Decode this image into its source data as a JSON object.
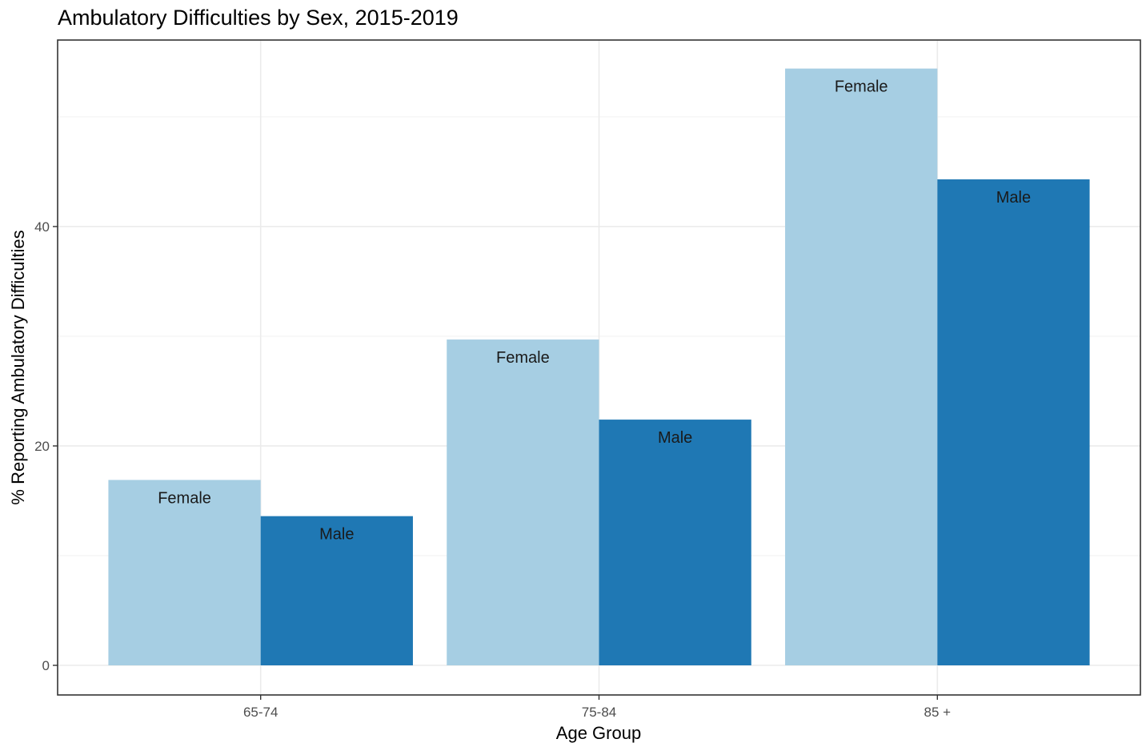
{
  "chart_data": {
    "type": "bar",
    "title": "Ambulatory Difficulties by Sex, 2015-2019",
    "xlabel": "Age Group",
    "ylabel": "% Reporting Ambulatory Difficulties",
    "categories": [
      "65-74",
      "75-84",
      "85 +"
    ],
    "series": [
      {
        "name": "Female",
        "color": "#a6cee3",
        "values": [
          16.9,
          29.7,
          54.4
        ]
      },
      {
        "name": "Male",
        "color": "#1f78b4",
        "values": [
          13.6,
          22.4,
          44.3
        ]
      }
    ],
    "ylim": [
      -2.7,
      57.0
    ],
    "yticks": [
      0,
      20,
      40
    ],
    "ytick_labels": [
      "0",
      "20",
      "40"
    ],
    "grid": true,
    "legend": "none",
    "bar_labels": "series name inside top of each bar"
  }
}
